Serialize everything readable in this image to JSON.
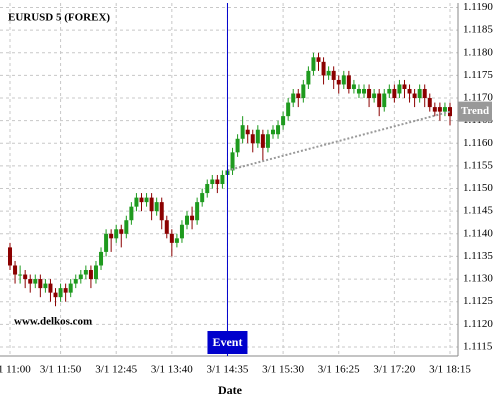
{
  "chart_data": {
    "type": "candlestick",
    "title": "EURUSD 5 (FOREX)",
    "watermark": "www.delkos.com",
    "x_label": "Date",
    "categories": [
      "3/1 11:00",
      null,
      null,
      null,
      null,
      null,
      null,
      null,
      null,
      null,
      "3/1 11:50",
      null,
      null,
      null,
      null,
      null,
      null,
      null,
      null,
      null,
      null,
      "3/1 12:45",
      null,
      null,
      null,
      null,
      null,
      null,
      null,
      null,
      null,
      null,
      "3/1 13:40",
      null,
      null,
      null,
      null,
      null,
      null,
      null,
      null,
      null,
      null,
      "3/1 14:35",
      null,
      null,
      null,
      null,
      null,
      null,
      null,
      null,
      null,
      null,
      "3/1 15:30",
      null,
      null,
      null,
      null,
      null,
      null,
      null,
      null,
      null,
      null,
      "3/1 16:25",
      null,
      null,
      null,
      null,
      null,
      null,
      null,
      null,
      null,
      null,
      "3/1 17:20",
      null,
      null,
      null,
      null,
      null,
      null,
      null,
      null,
      null,
      null,
      "3/1 18:15"
    ],
    "open": [
      1.1137,
      1.1133,
      1.1131,
      1.1131,
      1.113,
      1.1129,
      1.113,
      1.1128,
      1.1129,
      1.1127,
      1.1126,
      1.1128,
      1.1127,
      1.1129,
      1.113,
      1.1131,
      1.1132,
      1.113,
      1.1133,
      1.1136,
      1.114,
      1.1139,
      1.1141,
      1.114,
      1.1143,
      1.1146,
      1.1148,
      1.1147,
      1.1148,
      1.1145,
      1.1147,
      1.1143,
      1.114,
      1.1138,
      1.1139,
      1.1142,
      1.1144,
      1.1143,
      1.1147,
      1.1149,
      1.1151,
      1.1152,
      1.1151,
      1.1153,
      1.1154,
      1.1158,
      1.1161,
      1.1163,
      1.1162,
      1.116,
      1.1162,
      1.1159,
      1.1162,
      1.1162,
      1.1164,
      1.1166,
      1.1169,
      1.1171,
      1.117,
      1.1173,
      1.1176,
      1.1179,
      1.1178,
      1.1175,
      1.1176,
      1.1174,
      1.1173,
      1.1175,
      1.1172,
      1.1171,
      1.1171,
      1.1172,
      1.117,
      1.1171,
      1.1168,
      1.1171,
      1.1172,
      1.1171,
      1.1173,
      1.1172,
      1.1171,
      1.117,
      1.1172,
      1.117,
      1.1168,
      1.1168,
      1.1167,
      1.1168
    ],
    "high": [
      1.1138,
      1.1134,
      1.1133,
      1.1132,
      1.1131,
      1.1131,
      1.1131,
      1.113,
      1.113,
      1.1128,
      1.1129,
      1.1129,
      1.113,
      1.1131,
      1.1132,
      1.1133,
      1.1133,
      1.1134,
      1.1137,
      1.1141,
      1.1141,
      1.1142,
      1.1142,
      1.1144,
      1.1147,
      1.1149,
      1.1149,
      1.1149,
      1.1149,
      1.1148,
      1.1148,
      1.1144,
      1.1141,
      1.114,
      1.1143,
      1.1145,
      1.1146,
      1.1148,
      1.115,
      1.1152,
      1.1153,
      1.1153,
      1.1154,
      1.1156,
      1.1159,
      1.1162,
      1.1166,
      1.1164,
      1.1163,
      1.1164,
      1.1163,
      1.1163,
      1.1164,
      1.1165,
      1.1167,
      1.117,
      1.1172,
      1.1172,
      1.1174,
      1.1177,
      1.118,
      1.118,
      1.1179,
      1.1177,
      1.1177,
      1.1175,
      1.1176,
      1.1176,
      1.1174,
      1.1173,
      1.1173,
      1.1173,
      1.1172,
      1.1172,
      1.1172,
      1.1173,
      1.1173,
      1.1174,
      1.1174,
      1.1173,
      1.1172,
      1.1173,
      1.1173,
      1.1171,
      1.1169,
      1.1169,
      1.1169,
      1.1169
    ],
    "low": [
      1.1132,
      1.1129,
      1.1129,
      1.1128,
      1.1127,
      1.1128,
      1.1126,
      1.1127,
      1.1125,
      1.1124,
      1.1125,
      1.1125,
      1.1126,
      1.1128,
      1.1129,
      1.113,
      1.1128,
      1.1129,
      1.1132,
      1.1135,
      1.1136,
      1.1138,
      1.1137,
      1.1139,
      1.1142,
      1.1145,
      1.1145,
      1.1146,
      1.1143,
      1.1144,
      1.1141,
      1.1139,
      1.1135,
      1.1137,
      1.1138,
      1.1141,
      1.1141,
      1.1142,
      1.1146,
      1.1148,
      1.115,
      1.1149,
      1.115,
      1.1151,
      1.1153,
      1.1157,
      1.116,
      1.116,
      1.1158,
      1.1159,
      1.1156,
      1.1158,
      1.1161,
      1.1161,
      1.1163,
      1.1165,
      1.1168,
      1.1168,
      1.1169,
      1.1172,
      1.1175,
      1.1176,
      1.1173,
      1.1174,
      1.1172,
      1.1171,
      1.1172,
      1.1171,
      1.1171,
      1.117,
      1.117,
      1.1168,
      1.1169,
      1.1166,
      1.1167,
      1.117,
      1.1169,
      1.117,
      1.117,
      1.1169,
      1.1168,
      1.1169,
      1.1168,
      1.1167,
      1.1166,
      1.1165,
      1.1166,
      1.1164
    ],
    "close": [
      1.1133,
      1.1131,
      1.1131,
      1.113,
      1.1129,
      1.113,
      1.1128,
      1.1129,
      1.1127,
      1.1126,
      1.1128,
      1.1127,
      1.1129,
      1.113,
      1.1131,
      1.1132,
      1.113,
      1.1133,
      1.1136,
      1.114,
      1.1139,
      1.1141,
      1.114,
      1.1143,
      1.1146,
      1.1148,
      1.1147,
      1.1148,
      1.1145,
      1.1147,
      1.1143,
      1.114,
      1.1138,
      1.1139,
      1.1142,
      1.1144,
      1.1143,
      1.1147,
      1.1149,
      1.1151,
      1.1152,
      1.1151,
      1.1153,
      1.1154,
      1.1158,
      1.1161,
      1.1164,
      1.1162,
      1.116,
      1.1163,
      1.1159,
      1.1162,
      1.1163,
      1.1164,
      1.1166,
      1.1169,
      1.1171,
      1.117,
      1.1173,
      1.1176,
      1.1179,
      1.1178,
      1.1175,
      1.1176,
      1.1174,
      1.1173,
      1.1175,
      1.1172,
      1.1173,
      1.1172,
      1.1172,
      1.117,
      1.1171,
      1.1168,
      1.1171,
      1.1172,
      1.117,
      1.1173,
      1.1172,
      1.1171,
      1.117,
      1.1172,
      1.117,
      1.1168,
      1.1167,
      1.1167,
      1.1168,
      1.1166
    ],
    "up_color": "#1e9a1e",
    "down_color": "#8b0000",
    "ylim": [
      1.1113,
      1.1191
    ],
    "yticks": [
      {
        "value": 1.119,
        "label": "1.1190"
      },
      1.1185,
      {
        "value": 1.118,
        "label": "1.1180"
      },
      1.1175,
      {
        "value": 1.117,
        "label": "1.1170"
      },
      1.1165,
      {
        "value": 1.116,
        "label": "1.1160"
      },
      1.1155,
      {
        "value": 1.115,
        "label": "1.1150"
      },
      1.1145,
      {
        "value": 1.114,
        "label": "1.1140"
      },
      1.1135,
      {
        "value": 1.113,
        "label": "1.1130"
      },
      1.1125,
      {
        "value": 1.112,
        "label": "1.1120"
      },
      1.1115
    ],
    "grid": true,
    "event": {
      "label": "Event",
      "category": "3/1 14:35",
      "color": "#0000cc"
    },
    "trend": {
      "label": "Trend",
      "x": [
        43,
        87
      ],
      "values": [
        1.1154,
        1.1167
      ],
      "color": "#999999"
    }
  }
}
